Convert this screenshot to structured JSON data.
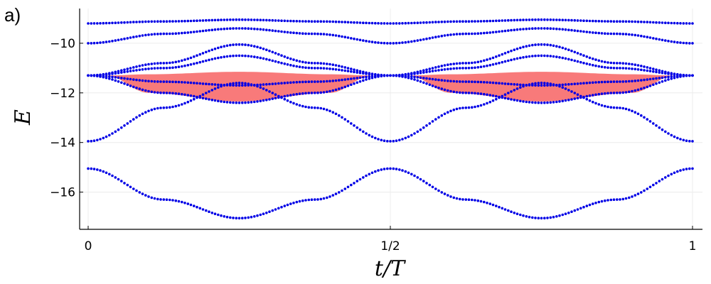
{
  "panel_label": "a)",
  "chart_data": {
    "type": "scatter",
    "xlabel": "t/T",
    "ylabel": "E",
    "xlim": [
      0,
      1
    ],
    "ylim": [
      -17.5,
      -8.6
    ],
    "x_ticks": [
      {
        "value": 0,
        "label": "0"
      },
      {
        "value": 0.5,
        "label": "1/2"
      },
      {
        "value": 1,
        "label": "1"
      }
    ],
    "y_ticks": [
      {
        "value": -10,
        "label": "−10"
      },
      {
        "value": -12,
        "label": "−12"
      },
      {
        "value": -14,
        "label": "−14"
      },
      {
        "value": -16,
        "label": "−16"
      }
    ],
    "grid": true,
    "legend": "none",
    "marker_color": "#0000e6",
    "band_color": "#f87a7a",
    "series": [
      {
        "x": [
          0,
          0.125,
          0.25,
          0.375,
          0.5,
          0.625,
          0.75,
          0.875,
          1
        ],
        "y": [
          -9.2,
          -9.12,
          -9.05,
          -9.12,
          -9.2,
          -9.12,
          -9.05,
          -9.12,
          -9.2
        ]
      },
      {
        "x": [
          0,
          0.125,
          0.25,
          0.375,
          0.5,
          0.625,
          0.75,
          0.875,
          1
        ],
        "y": [
          -10.0,
          -9.62,
          -9.4,
          -9.62,
          -10.0,
          -9.62,
          -9.4,
          -9.62,
          -10.0
        ]
      },
      {
        "x": [
          0,
          0.125,
          0.25,
          0.375,
          0.5,
          0.625,
          0.75,
          0.875,
          1
        ],
        "y": [
          -11.3,
          -10.8,
          -10.05,
          -10.8,
          -11.3,
          -10.8,
          -10.05,
          -10.8,
          -11.3
        ]
      },
      {
        "x": [
          0,
          0.125,
          0.25,
          0.375,
          0.5,
          0.625,
          0.75,
          0.875,
          1
        ],
        "y": [
          -11.3,
          -11.0,
          -10.5,
          -11.0,
          -11.3,
          -11.0,
          -10.5,
          -11.0,
          -11.3
        ]
      },
      {
        "x": [
          0,
          0.125,
          0.25,
          0.375,
          0.5,
          0.625,
          0.75,
          0.875,
          1
        ],
        "y": [
          -11.3,
          -11.55,
          -11.7,
          -11.55,
          -11.3,
          -11.55,
          -11.7,
          -11.55,
          -11.3
        ]
      },
      {
        "x": [
          0,
          0.125,
          0.25,
          0.375,
          0.5,
          0.625,
          0.75,
          0.875,
          1
        ],
        "y": [
          -11.3,
          -12.0,
          -12.4,
          -12.0,
          -11.3,
          -12.0,
          -12.4,
          -12.0,
          -11.3
        ]
      },
      {
        "x": [
          0,
          0.125,
          0.25,
          0.375,
          0.5,
          0.625,
          0.75,
          0.875,
          1
        ],
        "y": [
          -13.95,
          -12.6,
          -11.6,
          -12.6,
          -13.95,
          -12.6,
          -11.6,
          -12.6,
          -13.95
        ]
      },
      {
        "x": [
          0,
          0.125,
          0.25,
          0.375,
          0.5,
          0.625,
          0.75,
          0.875,
          1
        ],
        "y": [
          -15.05,
          -16.3,
          -17.05,
          -16.3,
          -15.05,
          -16.3,
          -17.05,
          -16.3,
          -15.05
        ]
      }
    ],
    "bands": [
      {
        "x": [
          0.03,
          0.1,
          0.25,
          0.4,
          0.47
        ],
        "upper": [
          -11.3,
          -11.25,
          -11.15,
          -11.25,
          -11.3
        ],
        "lower": [
          -11.3,
          -12.0,
          -12.35,
          -12.0,
          -11.3
        ]
      },
      {
        "x": [
          0.53,
          0.6,
          0.75,
          0.9,
          0.97
        ],
        "upper": [
          -11.3,
          -11.25,
          -11.15,
          -11.25,
          -11.3
        ],
        "lower": [
          -11.3,
          -12.0,
          -12.35,
          -12.0,
          -11.3
        ]
      }
    ]
  }
}
